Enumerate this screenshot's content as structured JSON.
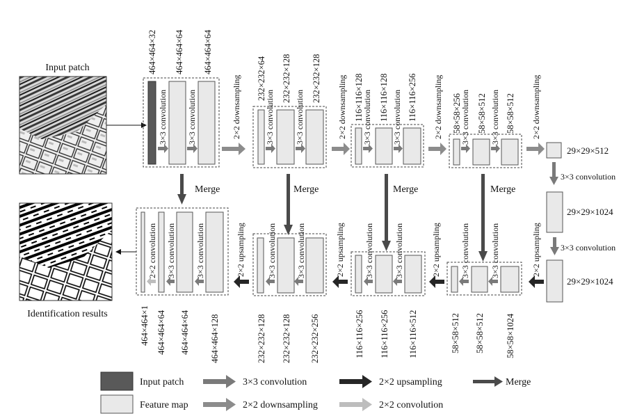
{
  "image_titles": {
    "input": "Input patch",
    "output": "Identification results"
  },
  "encoder": {
    "level1": {
      "dims": [
        "464×464×32",
        "464×464×64",
        "464×464×64"
      ],
      "convs": [
        "3×3 convolution",
        "3×3 convolution"
      ]
    },
    "level2": {
      "dims": [
        "232×232×64",
        "232×232×128",
        "232×232×128"
      ],
      "convs": [
        "3×3 convolution",
        "3×3 convolution"
      ]
    },
    "level3": {
      "dims": [
        "116×116×128",
        "116×116×128",
        "116×116×256"
      ],
      "convs": [
        "3×3 convolution",
        "3×3 convolution"
      ]
    },
    "level4": {
      "dims": [
        "58×58×256",
        "58×58×512",
        "58×58×512"
      ],
      "convs": [
        "3×3 convolution",
        "3×3 convolution"
      ]
    },
    "downsamples": [
      "2×2 downsampling",
      "2×2 downsampling",
      "2×2 downsampling",
      "2×2 downsampling"
    ]
  },
  "bottleneck": {
    "dims": [
      "29×29×512",
      "29×29×1024",
      "29×29×1024"
    ],
    "convs": [
      "3×3 convolution",
      "3×3 convolution"
    ]
  },
  "decoder": {
    "level4": {
      "dims": [
        "58×58×512",
        "58×58×512",
        "58×58×1024"
      ],
      "convs": [
        "3×3 convolution",
        "3×3 convolution"
      ]
    },
    "level3": {
      "dims": [
        "116×116×256",
        "116×116×256",
        "116×116×512"
      ],
      "convs": [
        "3×3 convolution",
        "3×3 convolution"
      ]
    },
    "level2": {
      "dims": [
        "232×232×128",
        "232×232×128",
        "232×232×256"
      ],
      "convs": [
        "3×3 convolution",
        "3×3 convolution"
      ]
    },
    "level1": {
      "dims": [
        "464×464×1",
        "464×464×64",
        "464×464×64",
        "464×464×128"
      ],
      "convs": [
        "2×2 convolution",
        "3×3 convolution",
        "3×3 convolution"
      ]
    },
    "upsamples": [
      "2×2 upsampling",
      "2×2 upsampling",
      "2×2 upsampling",
      "2×2 upsampling"
    ]
  },
  "merges": [
    "Merge",
    "Merge",
    "Merge",
    "Merge"
  ],
  "legend": {
    "input_patch": "Input patch",
    "feature_map": "Feature map",
    "conv3": "3×3 convolution",
    "down": "2×2 downsampling",
    "up": "2×2 upsampling",
    "conv2": "2×2 convolution",
    "merge": "Merge"
  },
  "colors": {
    "input_fill": "#595959",
    "feature_fill": "#e9e9e9",
    "conv_arrow": "#7a7a7a",
    "down_arrow": "#8c8c8c",
    "up_arrow": "#262626",
    "conv2_arrow": "#bdbdbd",
    "merge_arrow": "#4a4a4a"
  }
}
